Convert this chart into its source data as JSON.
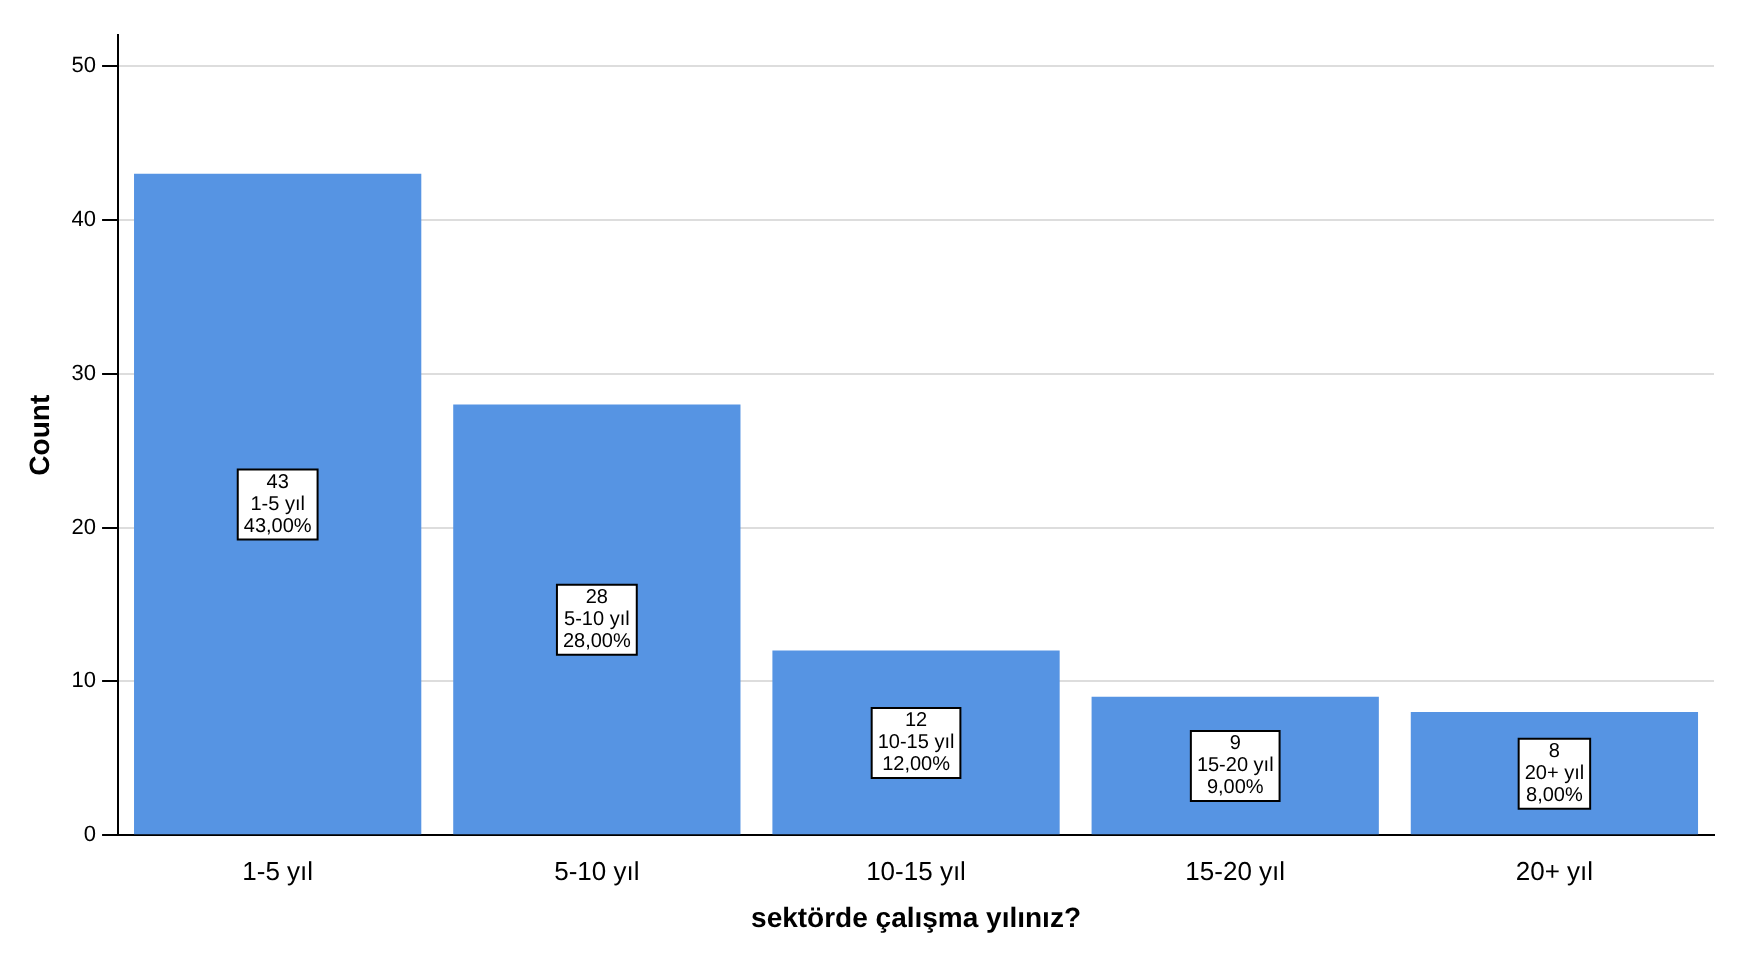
{
  "chart_data": {
    "type": "bar",
    "xlabel": "sektörde çalışma yılınız?",
    "ylabel": "Count",
    "categories": [
      "1-5 yıl",
      "5-10 yıl",
      "10-15 yıl",
      "15-20 yıl",
      "20+ yıl"
    ],
    "values": [
      43,
      28,
      12,
      9,
      8
    ],
    "value_labels": [
      "43\n1-5 yıl\n43,00%",
      "28\n5-10 yıl\n28,00%",
      "12\n10-15 yıl\n12,00%",
      "9\n15-20 yıl\n9,00%",
      "8\n20+ yıl\n8,00%"
    ],
    "color": "#5694e3",
    "ylim": [
      0,
      52
    ],
    "yticks": [
      0,
      10,
      20,
      30,
      40,
      50
    ],
    "grid": "y"
  }
}
